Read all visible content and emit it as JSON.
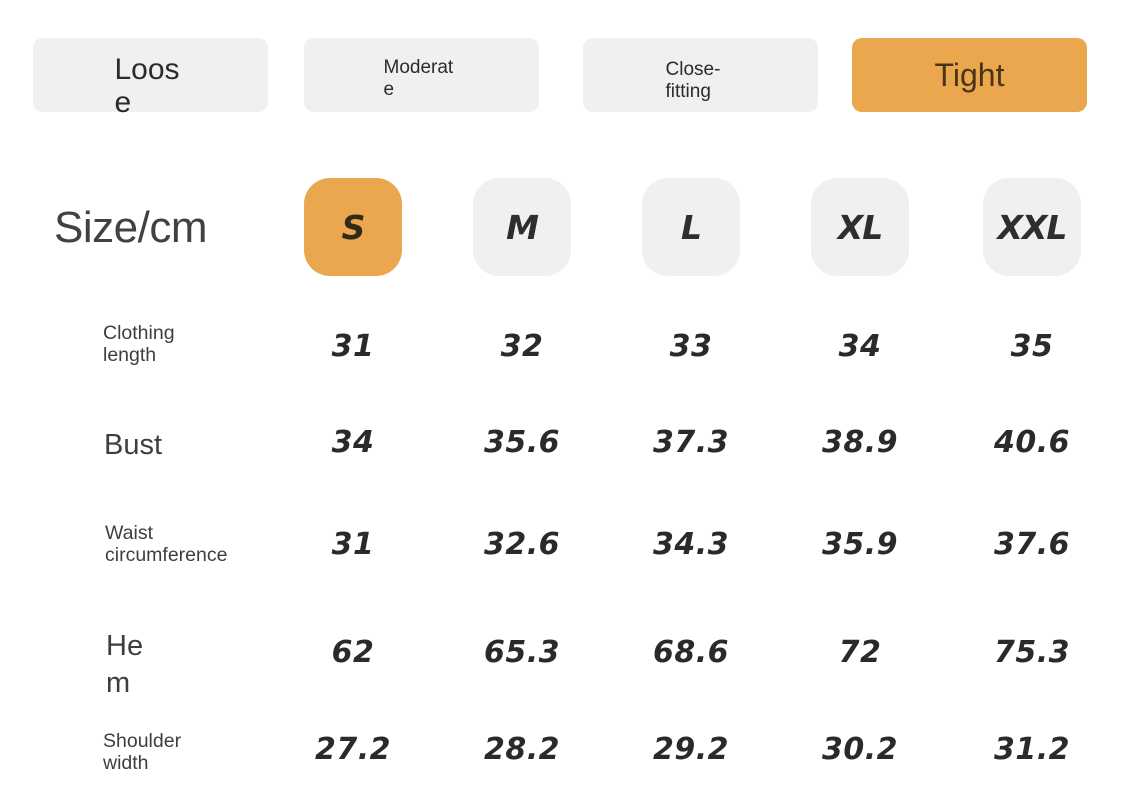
{
  "colors": {
    "accent": "#EAA74D",
    "accent_text": "#4A3418",
    "chip_bg": "#F0F0F0",
    "text_dark": "#2B2B2B",
    "label_color": "#3E3E3E",
    "value_color": "#2A2A2A"
  },
  "fit_options": [
    {
      "label": "Loose",
      "selected": false
    },
    {
      "label": "Moderate",
      "selected": false
    },
    {
      "label": "Close-fitting",
      "selected": false
    },
    {
      "label": "Tight",
      "selected": true
    }
  ],
  "size_table": {
    "header_label": "Size/cm",
    "sizes": [
      {
        "label": "S",
        "selected": true
      },
      {
        "label": "M",
        "selected": false
      },
      {
        "label": "L",
        "selected": false
      },
      {
        "label": "XL",
        "selected": false
      },
      {
        "label": "XXL",
        "selected": false
      }
    ],
    "rows": [
      {
        "label": "Clothing length",
        "values": [
          "31",
          "32",
          "33",
          "34",
          "35"
        ]
      },
      {
        "label": "Bust",
        "values": [
          "34",
          "35.6",
          "37.3",
          "38.9",
          "40.6"
        ]
      },
      {
        "label": "Waist circumference",
        "values": [
          "31",
          "32.6",
          "34.3",
          "35.9",
          "37.6"
        ]
      },
      {
        "label": "Hem",
        "values": [
          "62",
          "65.3",
          "68.6",
          "72",
          "75.3"
        ]
      },
      {
        "label": "Shoulder width",
        "values": [
          "27.2",
          "28.2",
          "29.2",
          "30.2",
          "31.2"
        ]
      }
    ]
  }
}
